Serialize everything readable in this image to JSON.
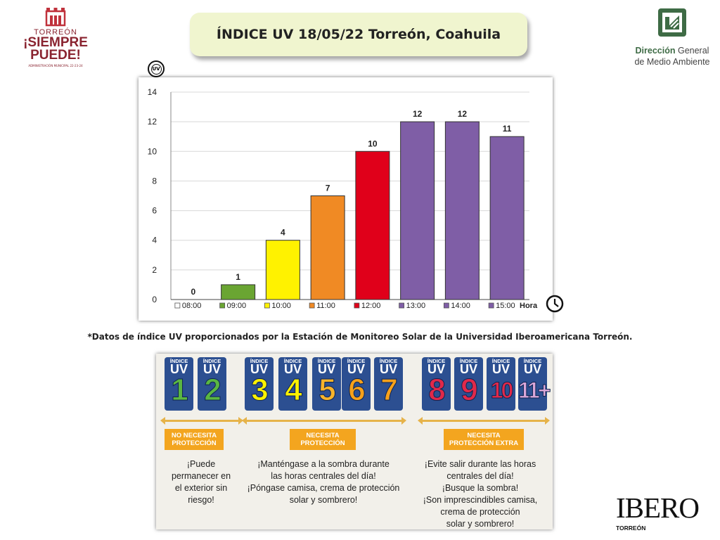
{
  "header": {
    "title": "ÍNDICE UV 18/05/22 Torreón, Coahuila",
    "logo_left": {
      "line1": "TORREÓN",
      "line2": "¡SIEMPRE",
      "line3": "PUEDE!",
      "line4": "ADMINISTRACIÓN MUNICIPAL 22-23-24"
    },
    "logo_right": {
      "line1_bold": "Dirección",
      "line1_rest": " General",
      "line2": "de Medio Ambiente"
    }
  },
  "chart_data": {
    "type": "bar",
    "categories": [
      "08:00",
      "09:00",
      "10:00",
      "11:00",
      "12:00",
      "13:00",
      "14:00",
      "15:00"
    ],
    "values": [
      0,
      1,
      4,
      7,
      10,
      12,
      12,
      11
    ],
    "colors": [
      "#ffffff",
      "#6aa532",
      "#fff200",
      "#f08a24",
      "#e0001a",
      "#7f5ea6",
      "#7f5ea6",
      "#7f5ea6"
    ],
    "ylim": [
      0,
      14
    ],
    "yticks": [
      0,
      2,
      4,
      6,
      8,
      10,
      12,
      14
    ],
    "xlabel": "Hora",
    "ylabel": "",
    "grid": "horizontal",
    "legend": "bottom"
  },
  "source_note": "*Datos de índice UV proporcionados por la Estación de Monitoreo Solar de la Universidad Iberoamericana Torreón.",
  "scale": {
    "tile_label": "ÍNDICE",
    "tile_uv": "UV",
    "tiles": [
      {
        "value": "1",
        "color": "#5ab642"
      },
      {
        "value": "2",
        "color": "#5ab642"
      },
      {
        "value": "3",
        "color": "#fff200"
      },
      {
        "value": "4",
        "color": "#fff200"
      },
      {
        "value": "5",
        "color": "#f7b32b"
      },
      {
        "value": "6",
        "color": "#f7a11a"
      },
      {
        "value": "7",
        "color": "#f7a11a"
      },
      {
        "value": "8",
        "color": "#e0294a"
      },
      {
        "value": "9",
        "color": "#e0294a"
      },
      {
        "value": "10",
        "color": "#e0294a"
      },
      {
        "value": "11+",
        "color": "#d9a6d8"
      }
    ],
    "groups": [
      {
        "tag": "NO NECESITA\nPROTECCIÓN",
        "text": "¡Puede\npermanecer en\nel exterior sin\nriesgo!"
      },
      {
        "tag": "NECESITA\nPROTECCIÓN",
        "text": "¡Manténgase a la sombra durante\nlas horas centrales del día!\n¡Póngase camisa, crema de protección\nsolar y sombrero!"
      },
      {
        "tag": "NECESITA\nPROTECCIÓN EXTRA",
        "text": "¡Evite salir durante las horas\ncentrales del día!\n¡Busque la sombra!\n¡Son imprescindibles camisa,\ncrema de protección\nsolar y sombrero!"
      }
    ]
  },
  "footer": {
    "brand": "IBERO",
    "sub": "TORREÓN"
  }
}
